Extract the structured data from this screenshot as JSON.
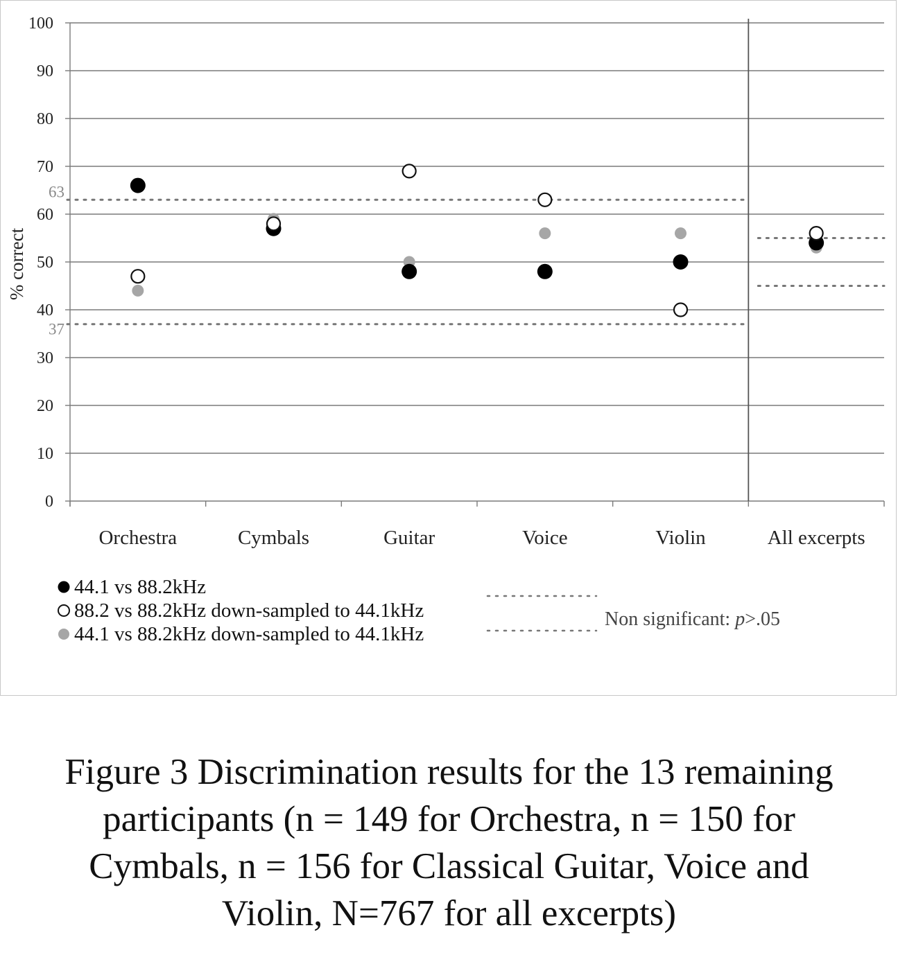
{
  "chart_data": {
    "type": "scatter",
    "categories": [
      "Orchestra",
      "Cymbals",
      "Guitar",
      "Voice",
      "Violin",
      "All excerpts"
    ],
    "ylabel": "% correct",
    "ylim": [
      0,
      100
    ],
    "yticks": [
      "0",
      "10",
      "20",
      "30",
      "40",
      "50",
      "60",
      "70",
      "80",
      "90",
      "100"
    ],
    "grid": true,
    "series": [
      {
        "name": "44.1 vs 88.2kHz",
        "marker": "filled-black",
        "color": "#000000",
        "values": [
          66,
          57,
          48,
          48,
          50,
          54
        ]
      },
      {
        "name": "88.2 vs 88.2kHz down-sampled to 44.1kHz",
        "marker": "open-circle",
        "color": "#000000",
        "values": [
          47,
          58,
          69,
          63,
          40,
          56
        ]
      },
      {
        "name": "44.1 vs 88.2kHz down-sampled to 44.1kHz",
        "marker": "filled-gray",
        "color": "#a6a6a6",
        "values": [
          44,
          59,
          50,
          56,
          56,
          53
        ]
      }
    ],
    "thresholds": [
      {
        "group": "per-excerpt",
        "upper": 63,
        "lower": 37,
        "upper_label": "63",
        "lower_label": "37"
      },
      {
        "group": "all-excerpts",
        "upper": 55,
        "lower": 45
      }
    ],
    "threshold_legend": {
      "prefix": "Non significant: ",
      "italic": "p",
      "suffix": ">.05"
    }
  },
  "caption": {
    "lines": [
      "Figure 3 Discrimination results for the 13 remaining",
      "participants (n = 149 for Orchestra, n = 150 for",
      "Cymbals, n = 156 for Classical Guitar, Voice and",
      "Violin, N=767 for all excerpts)"
    ]
  }
}
